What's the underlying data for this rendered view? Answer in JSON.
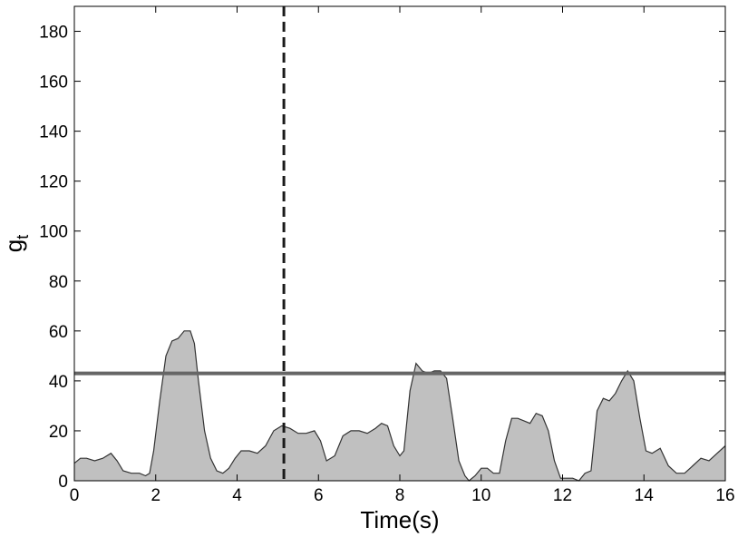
{
  "chart_data": {
    "type": "area",
    "title": "",
    "xlabel": "Time(s)",
    "ylabel_main": "g",
    "ylabel_sub": "t",
    "xlim": [
      0,
      16
    ],
    "ylim": [
      0,
      190
    ],
    "xticks": [
      0,
      2,
      4,
      6,
      8,
      10,
      12,
      14,
      16
    ],
    "yticks": [
      0,
      20,
      40,
      60,
      80,
      100,
      120,
      140,
      160,
      180
    ],
    "grid": false,
    "series": [
      {
        "fill_color": "#c0c0c0",
        "line_color": "#333333",
        "x": [
          0,
          0.15,
          0.3,
          0.5,
          0.7,
          0.9,
          1.05,
          1.2,
          1.4,
          1.6,
          1.75,
          1.85,
          1.95,
          2.1,
          2.25,
          2.4,
          2.55,
          2.7,
          2.85,
          2.95,
          3.05,
          3.2,
          3.35,
          3.5,
          3.65,
          3.8,
          3.95,
          4.1,
          4.3,
          4.5,
          4.7,
          4.9,
          5.1,
          5.3,
          5.5,
          5.7,
          5.9,
          6.05,
          6.2,
          6.4,
          6.6,
          6.8,
          7.0,
          7.2,
          7.4,
          7.55,
          7.7,
          7.85,
          8.0,
          8.1,
          8.25,
          8.4,
          8.55,
          8.7,
          8.85,
          9.0,
          9.15,
          9.3,
          9.45,
          9.6,
          9.7,
          9.85,
          10.0,
          10.15,
          10.3,
          10.45,
          10.6,
          10.75,
          10.9,
          11.05,
          11.2,
          11.35,
          11.5,
          11.65,
          11.8,
          11.95,
          12.1,
          12.25,
          12.4,
          12.55,
          12.7,
          12.85,
          13.0,
          13.15,
          13.3,
          13.45,
          13.6,
          13.75,
          13.9,
          14.05,
          14.2,
          14.4,
          14.6,
          14.8,
          15.0,
          15.2,
          15.4,
          15.6,
          15.8,
          16.0
        ],
        "y": [
          7,
          9,
          9,
          8,
          9,
          11,
          8,
          4,
          3,
          3,
          2,
          3,
          12,
          32,
          50,
          56,
          57,
          60,
          60,
          55,
          40,
          20,
          9,
          4,
          3,
          5,
          9,
          12,
          12,
          11,
          14,
          20,
          22,
          21,
          19,
          19,
          20,
          16,
          8,
          10,
          18,
          20,
          20,
          19,
          21,
          23,
          22,
          14,
          10,
          12,
          36,
          47,
          44,
          43,
          44,
          44,
          41,
          25,
          8,
          2,
          0,
          2,
          5,
          5,
          3,
          3,
          16,
          25,
          25,
          24,
          23,
          27,
          26,
          20,
          8,
          1,
          1,
          1,
          0,
          3,
          4,
          28,
          33,
          32,
          35,
          40,
          44,
          40,
          25,
          12,
          11,
          13,
          6,
          3,
          3,
          6,
          9,
          8,
          11,
          14
        ]
      }
    ],
    "reference_lines": [
      {
        "orientation": "horizontal",
        "value": 43,
        "style": "solid",
        "color": "#666666"
      },
      {
        "orientation": "vertical",
        "value": 5.15,
        "style": "dashed",
        "color": "#1a1a1a"
      }
    ]
  }
}
